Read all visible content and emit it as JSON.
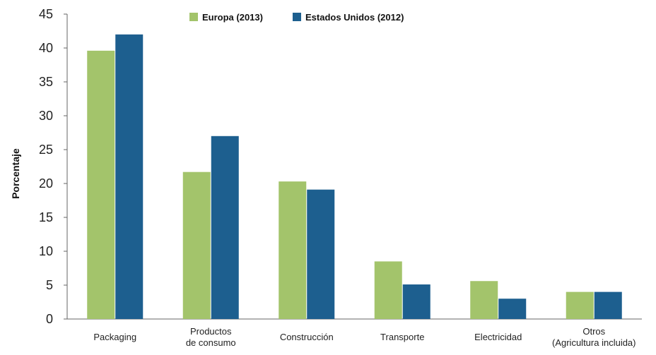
{
  "chart_data": {
    "type": "bar",
    "title": "",
    "xlabel": "",
    "ylabel": "Porcentaje",
    "ylim": [
      0,
      45
    ],
    "yticks": [
      0,
      5,
      10,
      15,
      20,
      25,
      30,
      35,
      40,
      45
    ],
    "categories": [
      [
        "Packaging"
      ],
      [
        "Productos",
        "de consumo"
      ],
      [
        "Construcción"
      ],
      [
        "Transporte"
      ],
      [
        "Electricidad"
      ],
      [
        "Otros",
        "(Agricultura incluida)"
      ]
    ],
    "series": [
      {
        "name": "Europa (2013)",
        "color": "#a3c46b",
        "values": [
          39.6,
          21.7,
          20.3,
          8.5,
          5.6,
          4.0
        ]
      },
      {
        "name": "Estados Unidos (2012)",
        "color": "#1d5f8f",
        "values": [
          42.0,
          27.0,
          19.1,
          5.1,
          3.0,
          4.0
        ]
      }
    ],
    "legend_position": "top-center",
    "grid": false
  }
}
